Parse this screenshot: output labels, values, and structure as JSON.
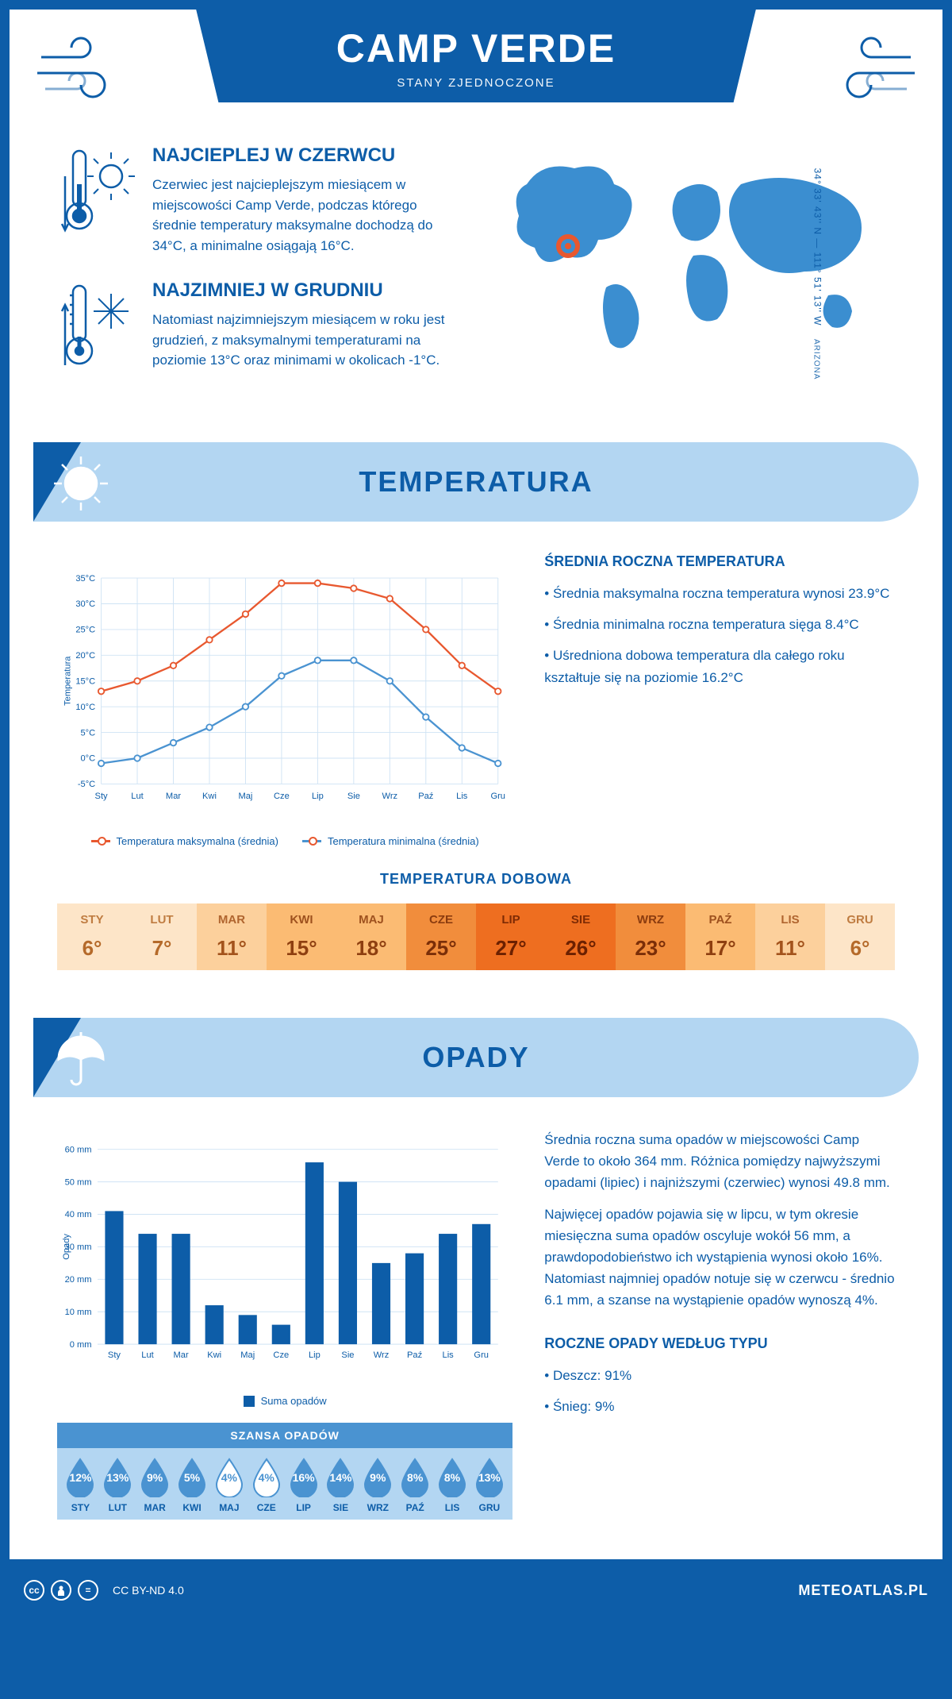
{
  "header": {
    "title": "CAMP VERDE",
    "subtitle": "STANY ZJEDNOCZONE"
  },
  "coords": {
    "text": "34° 33' 43'' N — 111° 51' 13'' W",
    "region": "ARIZONA"
  },
  "warm": {
    "title": "NAJCIEPLEJ W CZERWCU",
    "body": "Czerwiec jest najcieplejszym miesiącem w miejscowości Camp Verde, podczas którego średnie temperatury maksymalne dochodzą do 34°C, a minimalne osiągają 16°C."
  },
  "cold": {
    "title": "NAJZIMNIEJ W GRUDNIU",
    "body": "Natomiast najzimniejszym miesiącem w roku jest grudzień, z maksymalnymi temperaturami na poziomie 13°C oraz minimami w okolicach -1°C."
  },
  "sections": {
    "temp": "TEMPERATURA",
    "rain": "OPADY"
  },
  "months": [
    "Sty",
    "Lut",
    "Mar",
    "Kwi",
    "Maj",
    "Cze",
    "Lip",
    "Sie",
    "Wrz",
    "Paź",
    "Lis",
    "Gru"
  ],
  "months_upper": [
    "STY",
    "LUT",
    "MAR",
    "KWI",
    "MAJ",
    "CZE",
    "LIP",
    "SIE",
    "WRZ",
    "PAŹ",
    "LIS",
    "GRU"
  ],
  "temp_chart": {
    "y_label": "Temperatura",
    "y_ticks": [
      "-5°C",
      "0°C",
      "5°C",
      "10°C",
      "15°C",
      "20°C",
      "25°C",
      "30°C",
      "35°C"
    ],
    "y_min": -5,
    "y_max": 35,
    "max_series": [
      13,
      15,
      18,
      23,
      28,
      34,
      34,
      33,
      31,
      25,
      18,
      13
    ],
    "min_series": [
      -1,
      0,
      3,
      6,
      10,
      16,
      19,
      19,
      15,
      8,
      2,
      -1
    ],
    "max_color": "#e8582f",
    "min_color": "#4a93d1",
    "grid_color": "#cfe3f4",
    "legend_max": "Temperatura maksymalna (średnia)",
    "legend_min": "Temperatura minimalna (średnia)"
  },
  "avg_temp": {
    "title": "ŚREDNIA ROCZNA TEMPERATURA",
    "items": [
      "Średnia maksymalna roczna temperatura wynosi 23.9°C",
      "Średnia minimalna roczna temperatura sięga 8.4°C",
      "Uśredniona dobowa temperatura dla całego roku kształtuje się na poziomie 16.2°C"
    ]
  },
  "dobowa": {
    "title": "TEMPERATURA DOBOWA",
    "values": [
      "6°",
      "7°",
      "11°",
      "15°",
      "18°",
      "25°",
      "27°",
      "26°",
      "23°",
      "17°",
      "11°",
      "6°"
    ],
    "bg_colors": [
      "#fde5c8",
      "#fde5c8",
      "#fcd09c",
      "#fbbb73",
      "#fbbb73",
      "#f18d3c",
      "#ee6e20",
      "#ee6e20",
      "#f18d3c",
      "#fbbb73",
      "#fcd09c",
      "#fde5c8"
    ],
    "text_colors": [
      "#b56a2a",
      "#b56a2a",
      "#a3531c",
      "#8e3f10",
      "#8e3f10",
      "#7a2e08",
      "#6b2000",
      "#6b2000",
      "#7a2e08",
      "#8e3f10",
      "#a3531c",
      "#b56a2a"
    ]
  },
  "rain_chart": {
    "y_label": "Opady",
    "y_ticks": [
      0,
      10,
      20,
      30,
      40,
      50,
      60
    ],
    "y_max": 60,
    "values": [
      41,
      34,
      34,
      12,
      9,
      6,
      56,
      50,
      25,
      28,
      34,
      37
    ],
    "bar_color": "#0d5da8",
    "grid_color": "#cfe3f4",
    "legend": "Suma opadów"
  },
  "rain_text": {
    "p1": "Średnia roczna suma opadów w miejscowości Camp Verde to około 364 mm. Różnica pomiędzy najwyższymi opadami (lipiec) i najniższymi (czerwiec) wynosi 49.8 mm.",
    "p2": "Najwięcej opadów pojawia się w lipcu, w tym okresie miesięczna suma opadów oscyluje wokół 56 mm, a prawdopodobieństwo ich wystąpienia wynosi około 16%. Natomiast najmniej opadów notuje się w czerwcu - średnio 6.1 mm, a szanse na wystąpienie opadów wynoszą 4%."
  },
  "szansa": {
    "title": "SZANSA OPADÓW",
    "values": [
      "12%",
      "13%",
      "9%",
      "5%",
      "4%",
      "4%",
      "16%",
      "14%",
      "9%",
      "8%",
      "8%",
      "13%"
    ],
    "filled": [
      true,
      true,
      true,
      true,
      false,
      false,
      true,
      true,
      true,
      true,
      true,
      true
    ]
  },
  "rain_type": {
    "title": "ROCZNE OPADY WEDŁUG TYPU",
    "items": [
      "Deszcz: 91%",
      "Śnieg: 9%"
    ]
  },
  "footer": {
    "license": "CC BY-ND 4.0",
    "site": "METEOATLAS.PL"
  },
  "colors": {
    "primary": "#0d5da8",
    "light": "#b3d6f2",
    "mid": "#4a93d1"
  }
}
